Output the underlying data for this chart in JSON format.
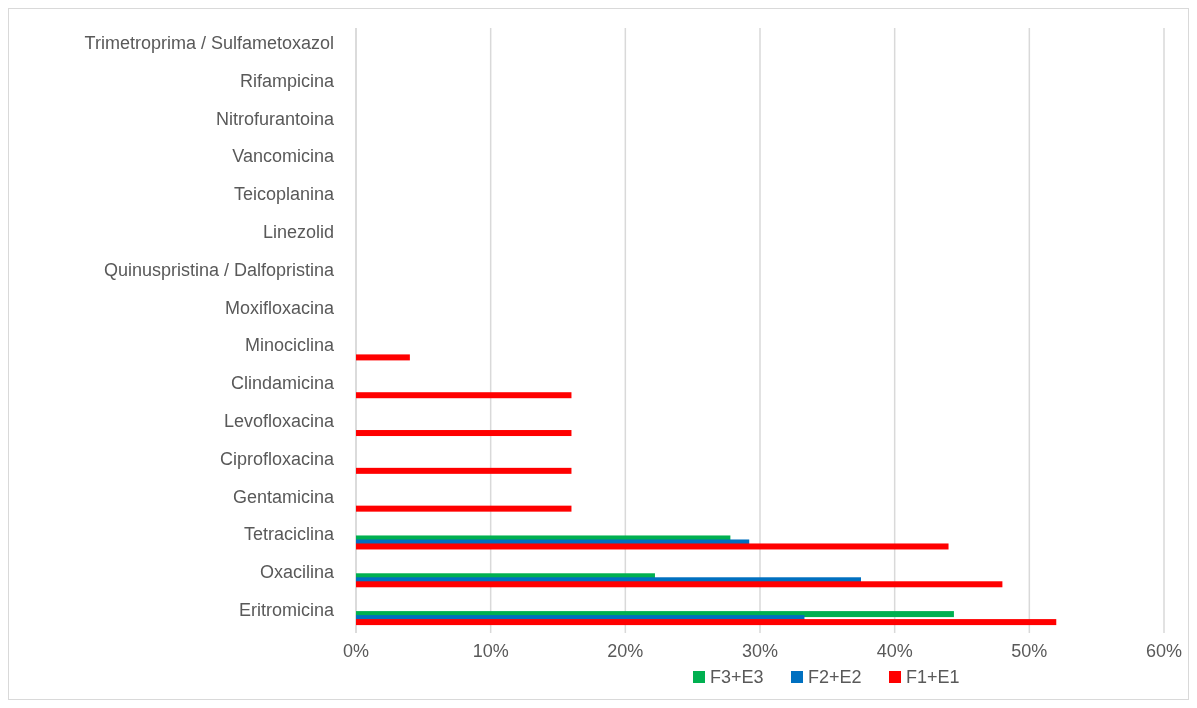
{
  "chart_data": {
    "type": "bar",
    "orientation": "horizontal",
    "categories": [
      "Trimetroprima / Sulfametoxazol",
      "Rifampicina",
      "Nitrofurantoina",
      "Vancomicina",
      "Teicoplanina",
      "Linezolid",
      "Quinuspristina / Dalfopristina",
      "Moxifloxacina",
      "Minociclina",
      "Clindamicina",
      "Levofloxacina",
      "Ciprofloxacina",
      "Gentamicina",
      "Tetraciclina",
      "Oxacilina",
      "Eritromicina"
    ],
    "series": [
      {
        "name": "F3+E3",
        "color": "#00b050",
        "values": [
          0,
          0,
          0,
          0,
          0,
          0,
          0,
          0,
          0,
          0,
          0,
          0,
          0,
          27.8,
          22.2,
          44.4
        ]
      },
      {
        "name": "F2+E2",
        "color": "#0070c0",
        "values": [
          0,
          0,
          0,
          0,
          0,
          0,
          0,
          0,
          0,
          0,
          0,
          0,
          0,
          29.2,
          37.5,
          33.3
        ]
      },
      {
        "name": "F1+E1",
        "color": "#ff0000",
        "values": [
          0,
          0,
          0,
          0,
          0,
          0,
          0,
          0,
          4,
          16,
          16,
          16,
          16,
          44,
          48,
          52
        ]
      }
    ],
    "xlim": [
      0,
      60
    ],
    "xticks": [
      {
        "value": 0,
        "label": "0%"
      },
      {
        "value": 10,
        "label": "10%"
      },
      {
        "value": 20,
        "label": "20%"
      },
      {
        "value": 30,
        "label": "30%"
      },
      {
        "value": 40,
        "label": "40%"
      },
      {
        "value": 50,
        "label": "50%"
      },
      {
        "value": 60,
        "label": "60%"
      }
    ],
    "grid": "x",
    "legend": "bottom"
  }
}
